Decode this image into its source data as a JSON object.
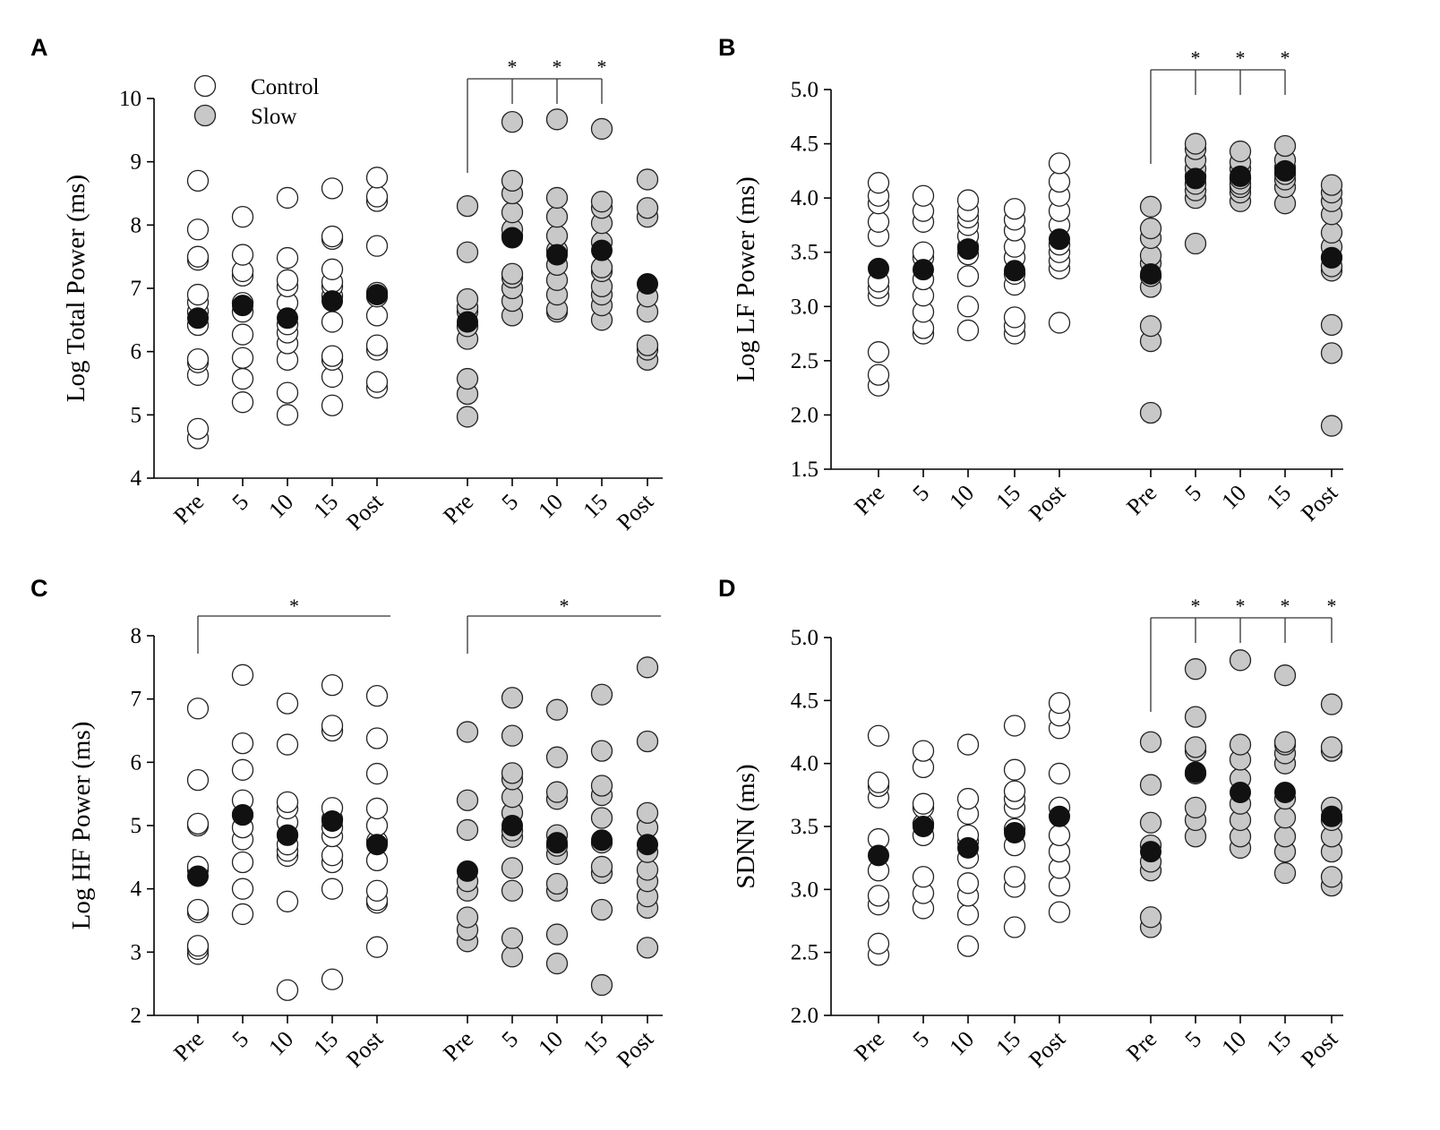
{
  "figure": {
    "colors": {
      "control": "#ffffff",
      "slow": "#c8c8c8",
      "mean": "#111111",
      "stroke": "#222222"
    },
    "legend": {
      "control": "Control",
      "slow": "Slow"
    }
  },
  "chart_data": [
    {
      "panel": "A",
      "type": "scatter",
      "ylabel": "Log Total Power (ms)",
      "ylim": [
        4,
        10
      ],
      "yticks": [
        4,
        5,
        6,
        7,
        8,
        9,
        10
      ],
      "ytick_labels": [
        "4",
        "5",
        "6",
        "7",
        "8",
        "9",
        "10"
      ],
      "categories": [
        "Pre",
        "5",
        "10",
        "15",
        "Post"
      ],
      "groups": [
        {
          "name": "Control",
          "fill": "control",
          "points": [
            [
              4.63,
              4.78,
              5.63,
              5.83,
              5.88,
              6.42,
              6.63,
              6.78,
              6.9,
              7.45,
              7.5,
              7.93,
              8.7
            ],
            [
              5.2,
              5.57,
              5.9,
              6.27,
              6.63,
              6.77,
              7.2,
              7.27,
              7.53,
              8.13
            ],
            [
              5.0,
              5.35,
              5.87,
              6.13,
              6.3,
              6.43,
              6.77,
              7.03,
              7.13,
              7.48,
              8.43
            ],
            [
              5.15,
              5.6,
              5.87,
              5.93,
              6.47,
              6.88,
              7.03,
              7.1,
              7.3,
              7.78,
              7.82,
              8.58
            ],
            [
              5.43,
              5.52,
              6.03,
              6.1,
              6.57,
              6.87,
              6.93,
              7.67,
              8.38,
              8.45,
              8.75
            ]
          ],
          "means": [
            6.53,
            6.73,
            6.53,
            6.8,
            6.9
          ]
        },
        {
          "name": "Slow",
          "fill": "slow",
          "points": [
            [
              4.97,
              5.33,
              5.57,
              6.2,
              6.4,
              6.63,
              6.7,
              6.83,
              7.57,
              8.3
            ],
            [
              6.57,
              6.8,
              7.0,
              7.17,
              7.23,
              7.83,
              7.93,
              8.2,
              8.5,
              8.7,
              9.63
            ],
            [
              6.63,
              6.67,
              6.9,
              7.13,
              7.37,
              7.6,
              7.83,
              8.13,
              8.43,
              9.67
            ],
            [
              6.5,
              6.73,
              6.9,
              7.03,
              7.27,
              7.33,
              7.73,
              8.03,
              8.27,
              8.37,
              9.52
            ],
            [
              5.87,
              6.03,
              6.1,
              6.63,
              6.87,
              8.13,
              8.27,
              8.72
            ]
          ],
          "means": [
            6.47,
            7.8,
            7.53,
            7.6,
            7.07
          ]
        }
      ],
      "annotations": [
        {
          "group": 1,
          "from": 0,
          "targets": [
            1,
            2,
            3
          ],
          "label": "*"
        }
      ]
    },
    {
      "panel": "B",
      "type": "scatter",
      "ylabel": "Log LF Power (ms)",
      "ylim": [
        1.5,
        5.0
      ],
      "yticks": [
        1.5,
        2.0,
        2.5,
        3.0,
        3.5,
        4.0,
        4.5,
        5.0
      ],
      "ytick_labels": [
        "1.5",
        "2.0",
        "2.5",
        "3.0",
        "3.5",
        "4.0",
        "4.5",
        "5.0"
      ],
      "categories": [
        "Pre",
        "5",
        "10",
        "15",
        "Post"
      ],
      "groups": [
        {
          "name": "Control",
          "fill": "control",
          "points": [
            [
              2.27,
              2.37,
              2.58,
              3.1,
              3.17,
              3.23,
              3.65,
              3.78,
              3.95,
              4.02,
              4.14
            ],
            [
              2.75,
              2.8,
              2.95,
              3.1,
              3.25,
              3.45,
              3.5,
              3.78,
              3.88,
              4.02
            ],
            [
              2.78,
              3.0,
              3.28,
              3.48,
              3.55,
              3.65,
              3.75,
              3.82,
              3.88,
              3.98
            ],
            [
              2.75,
              2.82,
              2.9,
              3.2,
              3.3,
              3.45,
              3.55,
              3.7,
              3.8,
              3.9
            ],
            [
              2.85,
              3.35,
              3.42,
              3.5,
              3.57,
              3.75,
              3.88,
              4.02,
              4.15,
              4.32
            ]
          ],
          "means": [
            3.35,
            3.34,
            3.53,
            3.33,
            3.62
          ]
        },
        {
          "name": "Slow",
          "fill": "slow",
          "points": [
            [
              2.02,
              2.68,
              2.82,
              3.18,
              3.28,
              3.4,
              3.47,
              3.63,
              3.72,
              3.92
            ],
            [
              3.58,
              4.0,
              4.07,
              4.13,
              4.2,
              4.27,
              4.35,
              4.45,
              4.5
            ],
            [
              3.97,
              4.05,
              4.1,
              4.13,
              4.18,
              4.27,
              4.33,
              4.43
            ],
            [
              3.95,
              4.1,
              4.17,
              4.22,
              4.28,
              4.35,
              4.48
            ],
            [
              1.9,
              2.57,
              2.83,
              3.33,
              3.37,
              3.45,
              3.55,
              3.68,
              3.85,
              3.97,
              4.05,
              4.12
            ]
          ],
          "means": [
            3.3,
            4.18,
            4.2,
            4.25,
            3.45
          ]
        }
      ],
      "annotations": [
        {
          "group": 1,
          "from": 0,
          "targets": [
            1,
            2,
            3
          ],
          "label": "*"
        }
      ]
    },
    {
      "panel": "C",
      "type": "scatter",
      "ylabel": "Log HF Power (ms)",
      "ylim": [
        2,
        8
      ],
      "yticks": [
        2,
        3,
        4,
        5,
        6,
        7,
        8
      ],
      "ytick_labels": [
        "2",
        "3",
        "4",
        "5",
        "6",
        "7",
        "8"
      ],
      "categories": [
        "Pre",
        "5",
        "10",
        "15",
        "Post"
      ],
      "groups": [
        {
          "name": "Control",
          "fill": "control",
          "points": [
            [
              2.97,
              3.05,
              3.1,
              3.63,
              3.67,
              4.3,
              4.35,
              5.0,
              5.03,
              5.72,
              6.85
            ],
            [
              3.6,
              4.0,
              4.42,
              4.78,
              4.97,
              5.17,
              5.4,
              5.88,
              6.3,
              7.38
            ],
            [
              2.4,
              3.8,
              4.52,
              4.6,
              4.7,
              4.85,
              5.05,
              5.27,
              5.37,
              6.28,
              6.93
            ],
            [
              2.57,
              4.0,
              4.42,
              4.53,
              4.83,
              4.97,
              5.1,
              5.28,
              6.5,
              6.58,
              7.22
            ],
            [
              3.08,
              3.78,
              3.82,
              3.97,
              4.45,
              4.75,
              5.0,
              5.27,
              5.82,
              6.38,
              7.05
            ]
          ],
          "means": [
            4.2,
            5.17,
            4.85,
            5.07,
            4.7
          ]
        },
        {
          "name": "Slow",
          "fill": "slow",
          "points": [
            [
              3.17,
              3.35,
              3.55,
              3.97,
              4.12,
              4.93,
              5.4,
              6.48
            ],
            [
              2.93,
              3.22,
              3.97,
              4.33,
              4.82,
              4.92,
              5.2,
              5.45,
              5.73,
              5.83,
              6.42,
              7.02
            ],
            [
              2.82,
              3.28,
              3.97,
              4.08,
              4.55,
              4.68,
              4.85,
              5.42,
              5.53,
              6.08,
              6.83
            ],
            [
              2.48,
              3.67,
              4.25,
              4.35,
              4.73,
              5.12,
              5.48,
              5.63,
              6.18,
              7.07
            ],
            [
              3.07,
              3.7,
              3.88,
              4.12,
              4.3,
              4.58,
              4.97,
              5.2,
              6.33,
              7.5
            ]
          ],
          "means": [
            4.28,
            5.0,
            4.73,
            4.77,
            4.7
          ]
        }
      ],
      "annotations": [
        {
          "group": 0,
          "from": 0,
          "to_end": true,
          "targets": [],
          "center_label": true,
          "label": "*"
        },
        {
          "group": 1,
          "from": 0,
          "to_end": true,
          "targets": [],
          "center_label": true,
          "label": "*"
        }
      ]
    },
    {
      "panel": "D",
      "type": "scatter",
      "ylabel": "SDNN (ms)",
      "ylim": [
        2.0,
        5.0
      ],
      "yticks": [
        2.0,
        2.5,
        3.0,
        3.5,
        4.0,
        4.5,
        5.0
      ],
      "ytick_labels": [
        "2.0",
        "2.5",
        "3.0",
        "3.5",
        "4.0",
        "4.5",
        "5.0"
      ],
      "categories": [
        "Pre",
        "5",
        "10",
        "15",
        "Post"
      ],
      "groups": [
        {
          "name": "Control",
          "fill": "control",
          "points": [
            [
              2.48,
              2.57,
              2.88,
              2.95,
              3.15,
              3.4,
              3.73,
              3.82,
              3.85,
              4.22
            ],
            [
              2.85,
              2.97,
              3.1,
              3.43,
              3.52,
              3.65,
              3.68,
              3.97,
              4.1
            ],
            [
              2.55,
              2.8,
              2.95,
              3.05,
              3.25,
              3.38,
              3.43,
              3.6,
              3.72,
              4.15
            ],
            [
              2.7,
              3.02,
              3.1,
              3.35,
              3.48,
              3.65,
              3.72,
              3.78,
              3.95,
              4.3
            ],
            [
              2.82,
              3.03,
              3.17,
              3.3,
              3.43,
              3.65,
              3.92,
              4.28,
              4.38,
              4.48
            ]
          ],
          "means": [
            3.27,
            3.5,
            3.33,
            3.45,
            3.58
          ]
        },
        {
          "name": "Slow",
          "fill": "slow",
          "points": [
            [
              2.7,
              2.78,
              3.15,
              3.22,
              3.35,
              3.53,
              3.83,
              4.17
            ],
            [
              3.42,
              3.55,
              3.65,
              3.92,
              4.1,
              4.13,
              4.37,
              4.75
            ],
            [
              3.33,
              3.42,
              3.55,
              3.68,
              3.88,
              4.03,
              4.15,
              4.82
            ],
            [
              3.13,
              3.3,
              3.42,
              3.57,
              3.72,
              4.0,
              4.08,
              4.15,
              4.17,
              4.7
            ],
            [
              3.03,
              3.1,
              3.3,
              3.42,
              3.55,
              3.65,
              4.1,
              4.13,
              4.47
            ]
          ],
          "means": [
            3.3,
            3.93,
            3.77,
            3.77,
            3.58
          ]
        }
      ],
      "annotations": [
        {
          "group": 1,
          "from": 0,
          "targets": [
            1,
            2,
            3,
            4
          ],
          "label": "*"
        }
      ]
    }
  ]
}
